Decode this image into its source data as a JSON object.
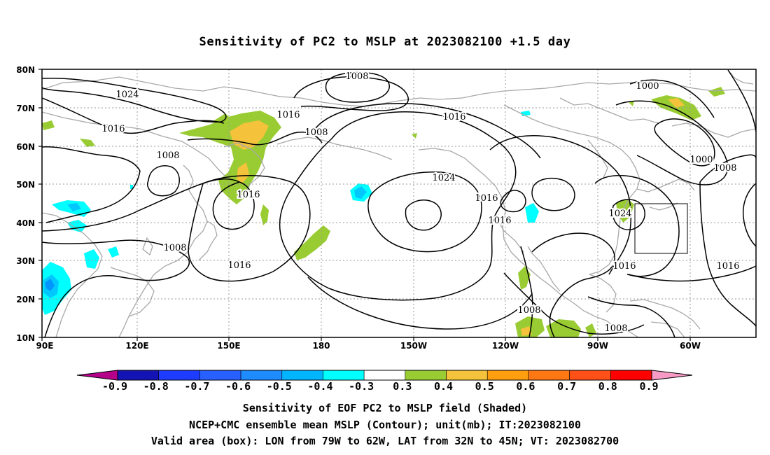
{
  "title": "Sensitivity of PC2 to MSLP at 2023082100 +1.5 day",
  "map": {
    "lon_labels": [
      "90E",
      "120E",
      "150E",
      "180",
      "150W",
      "120W",
      "90W",
      "60W"
    ],
    "lat_labels": [
      "80N",
      "70N",
      "60N",
      "50N",
      "40N",
      "30N",
      "20N",
      "10N"
    ],
    "contour_labels": [
      "1008",
      "1024",
      "1016",
      "1016",
      "1008",
      "1008",
      "1016",
      "1016",
      "1024",
      "1016",
      "1016",
      "1000",
      "1000",
      "1008",
      "1024",
      "1008",
      "1016",
      "1016",
      "1016",
      "1008",
      "1008"
    ],
    "valid_box": {
      "lon_from": "79W",
      "lon_to": "62W",
      "lat_from": "32N",
      "lat_to": "45N"
    },
    "colors": {
      "contour": "#000000",
      "coastline": "#a8a8a8",
      "grid": "#9a9a9a",
      "pos_03": "#99cc33",
      "pos_04": "#f5c33b",
      "neg_03": "#00ffff",
      "neg_04": "#00c8ff",
      "neg_05": "#0095ff"
    }
  },
  "colorbar": {
    "labels": [
      "-0.9",
      "-0.8",
      "-0.7",
      "-0.6",
      "-0.5",
      "-0.4",
      "-0.3",
      "0.3",
      "0.4",
      "0.5",
      "0.6",
      "0.7",
      "0.8",
      "0.9"
    ],
    "left_arrow_color": "#b5008a",
    "right_arrow_color": "#f79ac5",
    "colors": [
      "#1414b4",
      "#1e3cff",
      "#2860ff",
      "#1e8cff",
      "#00b4ff",
      "#00ffff",
      "#ffffff",
      "#99cc33",
      "#f5c33b",
      "#ff9f0f",
      "#ff7814",
      "#ff5018",
      "#ff0000"
    ]
  },
  "captions": [
    "Sensitivity of EOF PC2 to MSLP field (Shaded)",
    "NCEP+CMC ensemble mean MSLP (Contour); unit(mb); IT:2023082100",
    "Valid area (box): LON from 79W to 62W, LAT from 32N to 45N; VT: 2023082700"
  ]
}
